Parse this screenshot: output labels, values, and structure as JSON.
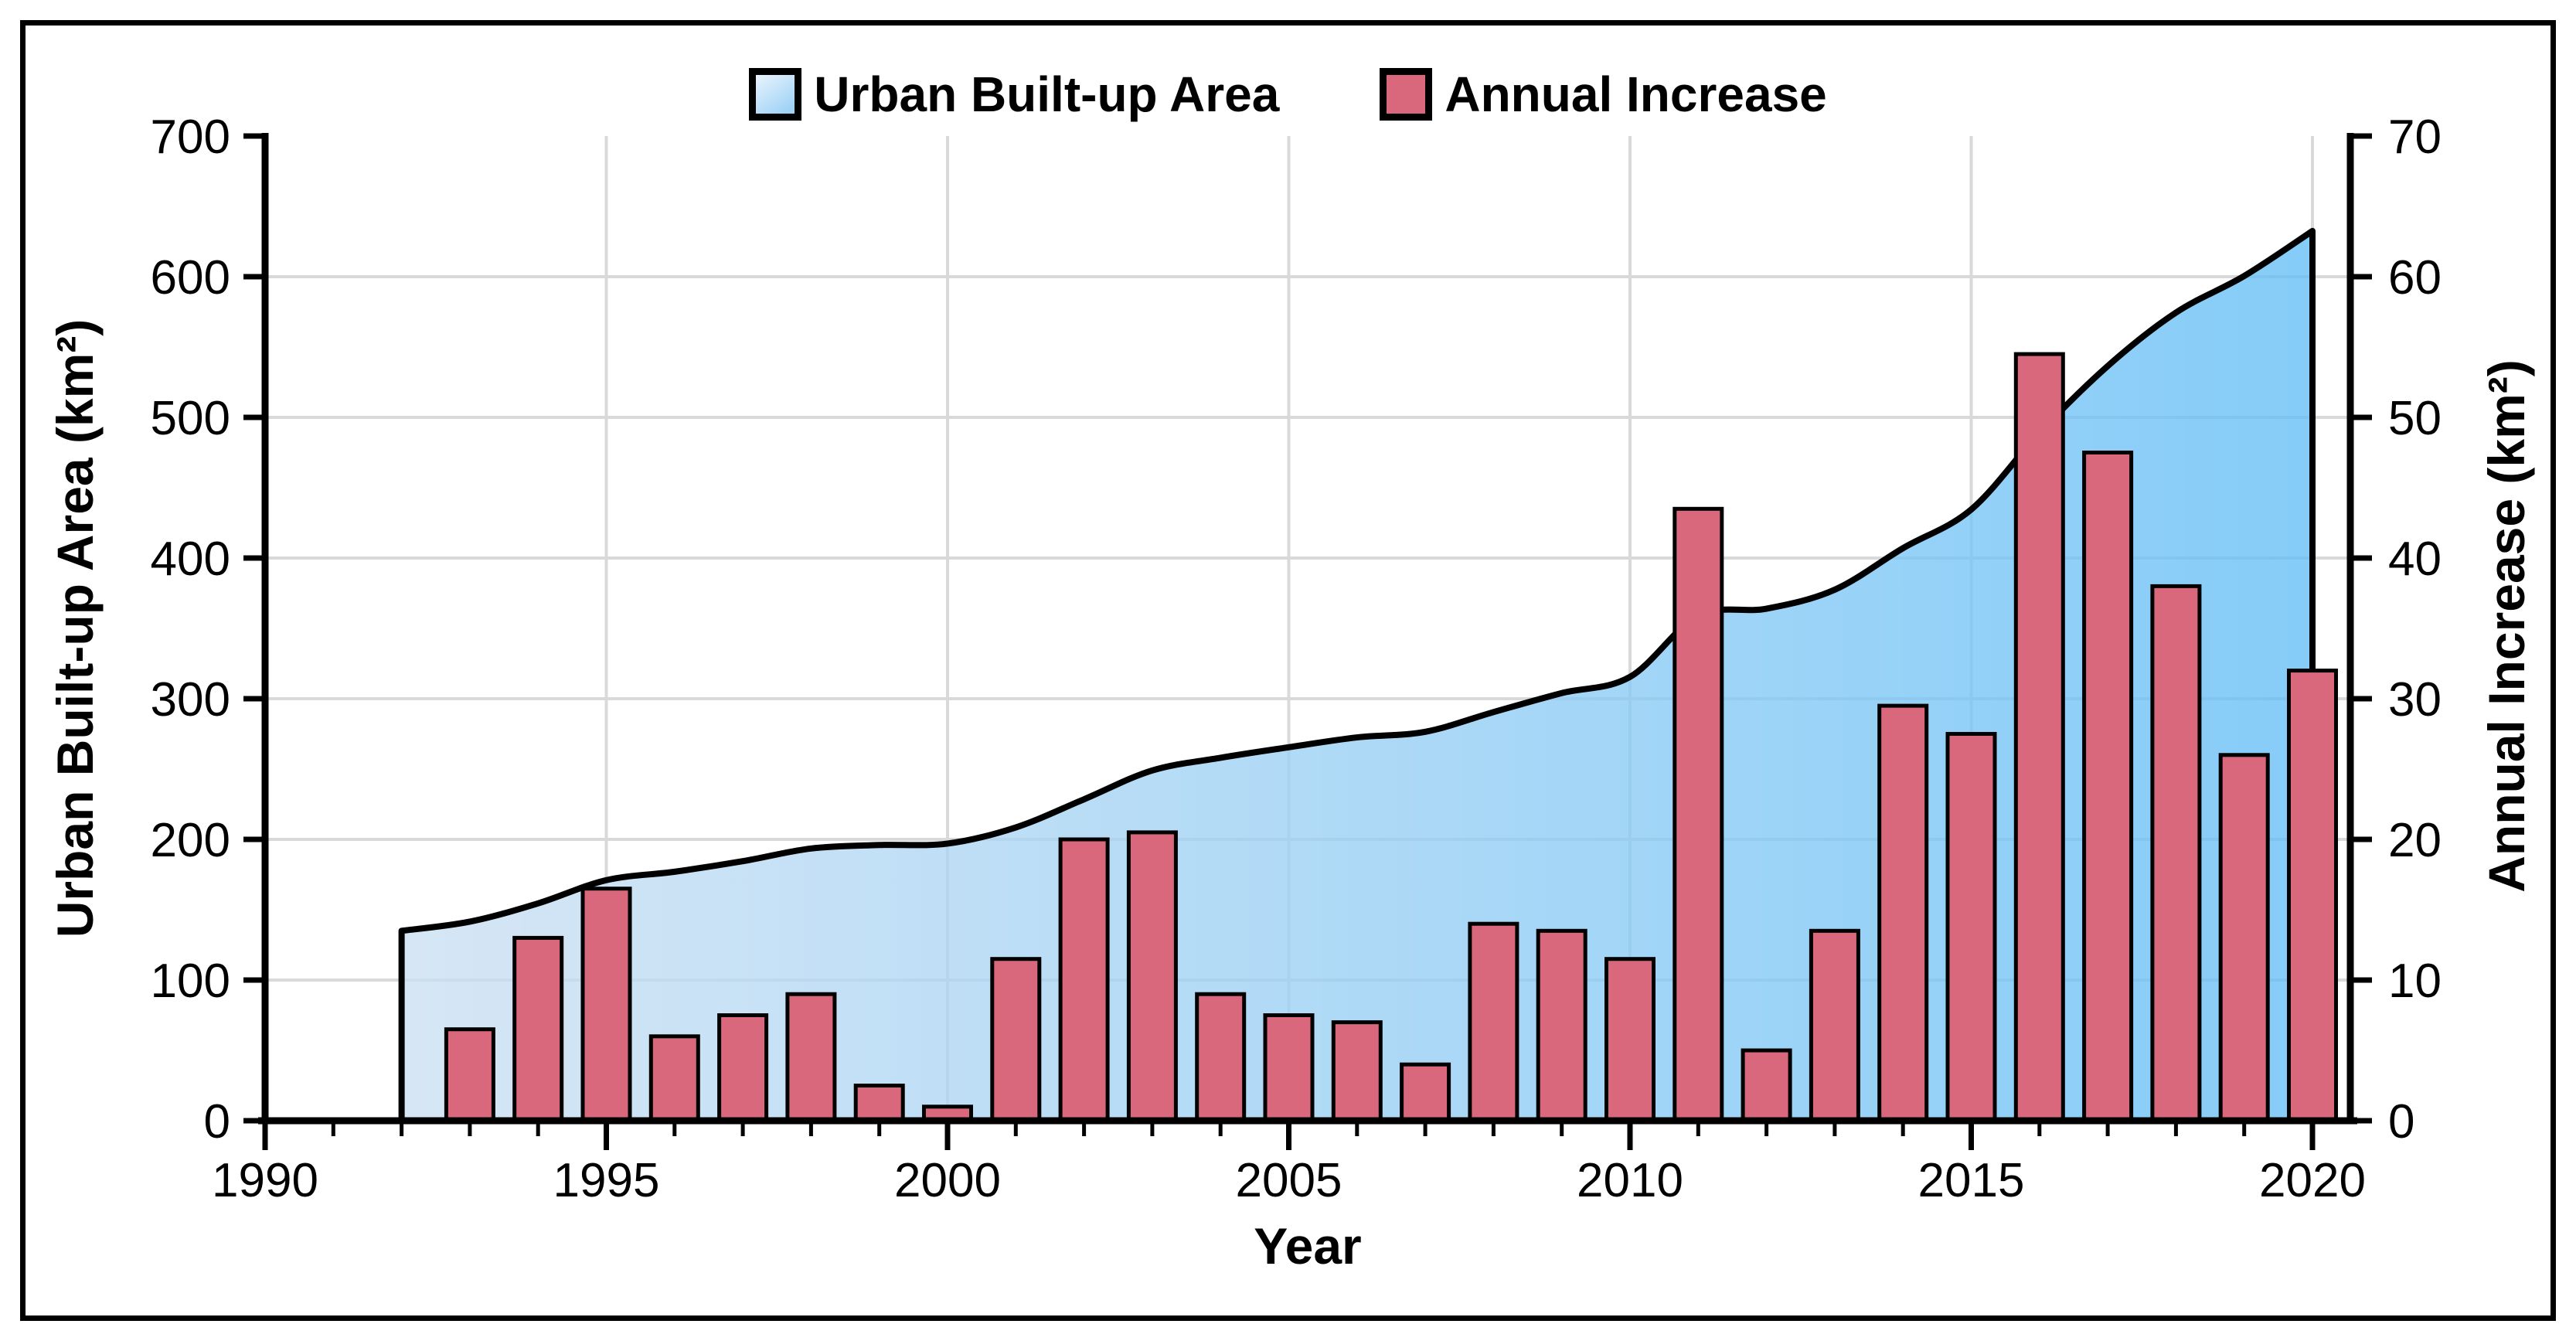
{
  "window": {
    "background": "#ffffff"
  },
  "legend": {
    "items": [
      {
        "label": "Urban Built-up Area",
        "swatch": "blue-gradient-square"
      },
      {
        "label": "Annual Increase",
        "swatch": "red-square"
      }
    ]
  },
  "axes": {
    "x": {
      "title": "Year",
      "min": 1990,
      "max": 2020.6,
      "major_ticks": [
        1990,
        1995,
        2000,
        2005,
        2010,
        2015,
        2020
      ],
      "minor_tick_step": 1
    },
    "y_left": {
      "title": "Urban Built-up Area (km²)",
      "min": 0,
      "max": 700,
      "ticks": [
        0,
        100,
        200,
        300,
        400,
        500,
        600,
        700
      ]
    },
    "y_right": {
      "title": "Annual Increase (km²)",
      "min": 0,
      "max": 70,
      "ticks": [
        0,
        10,
        20,
        30,
        40,
        50,
        60,
        70
      ]
    }
  },
  "chart_data": {
    "type": "combo",
    "title": "",
    "xlabel": "Year",
    "ylabel_left": "Urban Built-up Area (km²)",
    "ylabel_right": "Annual Increase (km²)",
    "grid": true,
    "legend_position": "top-center",
    "gridlines": {
      "horizontal_values_left": [
        100,
        200,
        300,
        400,
        500,
        600
      ],
      "vertical_years": [
        1995,
        2000,
        2005,
        2010,
        2015,
        2020
      ]
    },
    "series": [
      {
        "name": "Urban Built-up Area",
        "type": "area",
        "axis": "left",
        "line_smooth": true,
        "x": [
          1992,
          1993,
          1994,
          1995,
          1996,
          1997,
          1998,
          1999,
          2000,
          2001,
          2002,
          2003,
          2004,
          2005,
          2006,
          2007,
          2008,
          2009,
          2010,
          2011,
          2012,
          2013,
          2014,
          2015,
          2016,
          2017,
          2018,
          2019,
          2020
        ],
        "values": [
          135,
          141.5,
          154.5,
          171,
          177,
          184.5,
          193.5,
          196,
          197,
          208.5,
          228.5,
          249,
          258,
          265.5,
          272.5,
          276.5,
          290.5,
          304,
          315.5,
          359,
          364,
          377.5,
          407,
          434.5,
          489,
          536.5,
          574.5,
          600.5,
          632.5
        ]
      },
      {
        "name": "Annual Increase",
        "type": "bar",
        "axis": "right",
        "x": [
          1993,
          1994,
          1995,
          1996,
          1997,
          1998,
          1999,
          2000,
          2001,
          2002,
          2003,
          2004,
          2005,
          2006,
          2007,
          2008,
          2009,
          2010,
          2011,
          2012,
          2013,
          2014,
          2015,
          2016,
          2017,
          2018,
          2019,
          2020
        ],
        "values": [
          6.5,
          13,
          16.5,
          6,
          7.5,
          9,
          2.5,
          1,
          11.5,
          20,
          20.5,
          9,
          7.5,
          7,
          4,
          14,
          13.5,
          11.5,
          43.5,
          5,
          13.5,
          29.5,
          27.5,
          54.5,
          47.5,
          38,
          26,
          32
        ]
      }
    ]
  },
  "colors": {
    "bar": "#d9687c",
    "bar_border": "#000000",
    "area_gradient_start": "#cbdff2",
    "area_gradient_end": "#63bef6",
    "area_line": "#000000",
    "gridline": "#d9d9d9",
    "axis": "#000000",
    "text": "#000000"
  }
}
